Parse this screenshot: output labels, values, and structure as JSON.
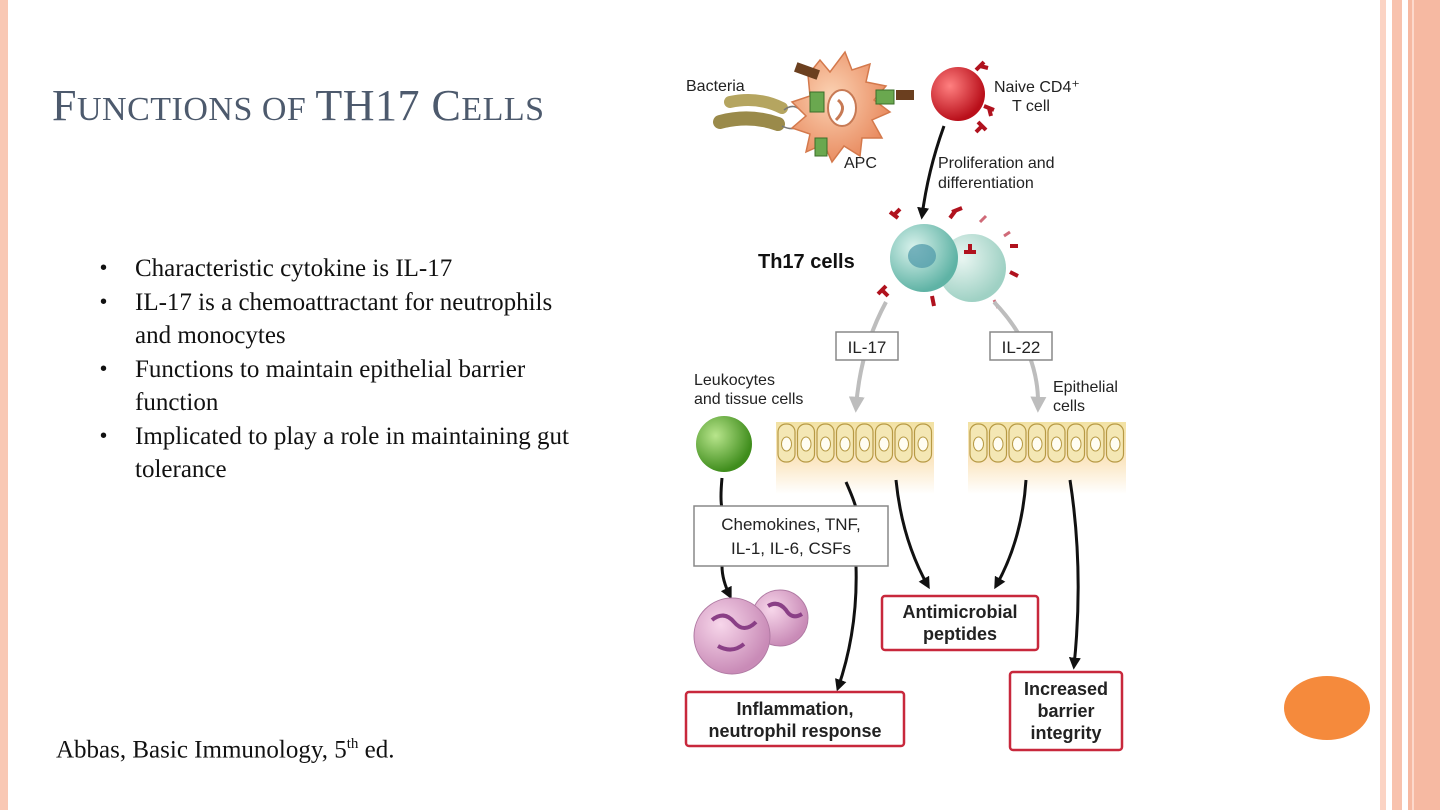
{
  "slide": {
    "title": {
      "parts": [
        {
          "t": "F",
          "c": "cap"
        },
        {
          "t": "UNCTIONS OF ",
          "c": "sm"
        },
        {
          "t": "TH17 C",
          "c": "cap"
        },
        {
          "t": "ELLS",
          "c": "sm"
        }
      ]
    },
    "bullets": [
      "Characteristic cytokine is IL-17",
      "IL-17 is a chemoattractant for neutrophils and monocytes",
      "Functions to maintain epithelial barrier function",
      "Implicated to play a role in maintaining gut tolerance"
    ],
    "citation": {
      "text": "Abbas, Basic Immunology, 5",
      "sup": "th",
      "suffix": " ed."
    }
  },
  "diagram": {
    "bacteria": "Bacteria",
    "apc": "APC",
    "naive_1": "Naive CD4⁺",
    "naive_2": "T cell",
    "prolif_1": "Proliferation and",
    "prolif_2": "differentiation",
    "th17": "Th17 cells",
    "il17": "IL-17",
    "il22": "IL-22",
    "leuko_1": "Leukocytes",
    "leuko_2": "and tissue cells",
    "epi_1": "Epithelial",
    "epi_2": "cells",
    "chemo_1": "Chemokines, TNF,",
    "chemo_2": "IL-1, IL-6, CSFs",
    "anti_1": "Antimicrobial",
    "anti_2": "peptides",
    "infl_1": "Inflammation,",
    "infl_2": "neutrophil response",
    "barrier_1": "Increased",
    "barrier_2": "barrier",
    "barrier_3": "integrity"
  },
  "colors": {
    "title": "#4d5a6d",
    "accent_orange": "#f58a3c",
    "stripe": "#f6b9a2",
    "box_border_red": "#c8283c"
  }
}
